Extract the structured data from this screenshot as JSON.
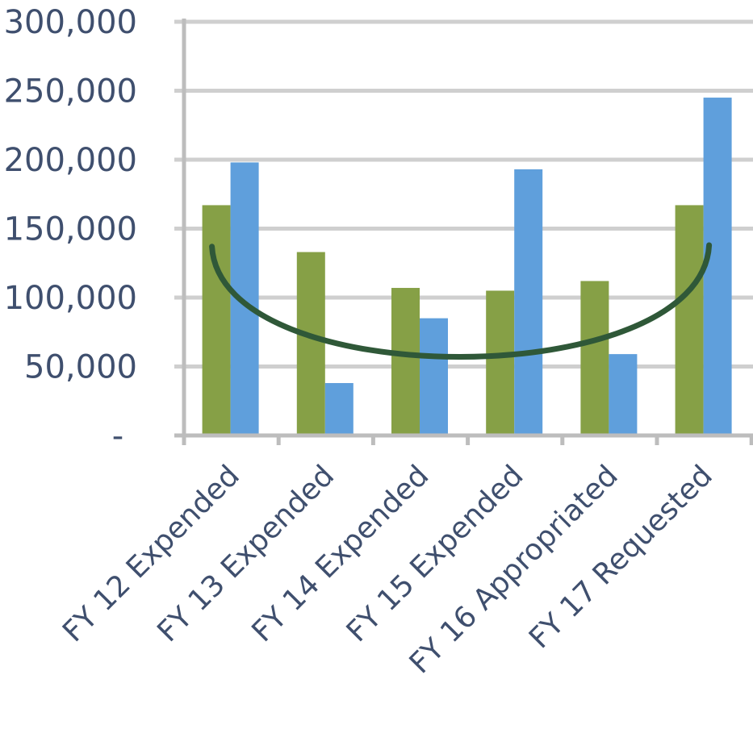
{
  "colors": {
    "series_green": "#86a046",
    "series_blue": "#5f9fdc",
    "trend_curve": "#2f5838",
    "gridline": "#cfcfcf",
    "axis": "#bdbdbd",
    "tick_text": "#3f4f6e"
  },
  "chart_data": {
    "type": "bar",
    "title": "",
    "xlabel": "",
    "ylabel": "",
    "categories": [
      "FY 12 Expended",
      "FY 13 Expended",
      "FY 14 Expended",
      "FY 15 Expended",
      "FY 16 Appropriated",
      "FY 17 Requested"
    ],
    "series": [
      {
        "values": [
          167000,
          133000,
          107000,
          105000,
          112000,
          167000
        ]
      },
      {
        "values": [
          198000,
          38000,
          85000,
          193000,
          59000,
          245000
        ]
      }
    ],
    "ylim": [
      0,
      300000
    ],
    "yticks": [
      0,
      50000,
      100000,
      150000,
      200000,
      250000,
      300000
    ],
    "ytick_labels": [
      "-",
      "50,000",
      "100,000",
      "150,000",
      "200,000",
      "250,000",
      "300,000"
    ],
    "grid": true,
    "legend": "none",
    "annotations": [
      {
        "type": "curve",
        "note_values": [
          137000,
          85000,
          138000
        ]
      }
    ]
  }
}
